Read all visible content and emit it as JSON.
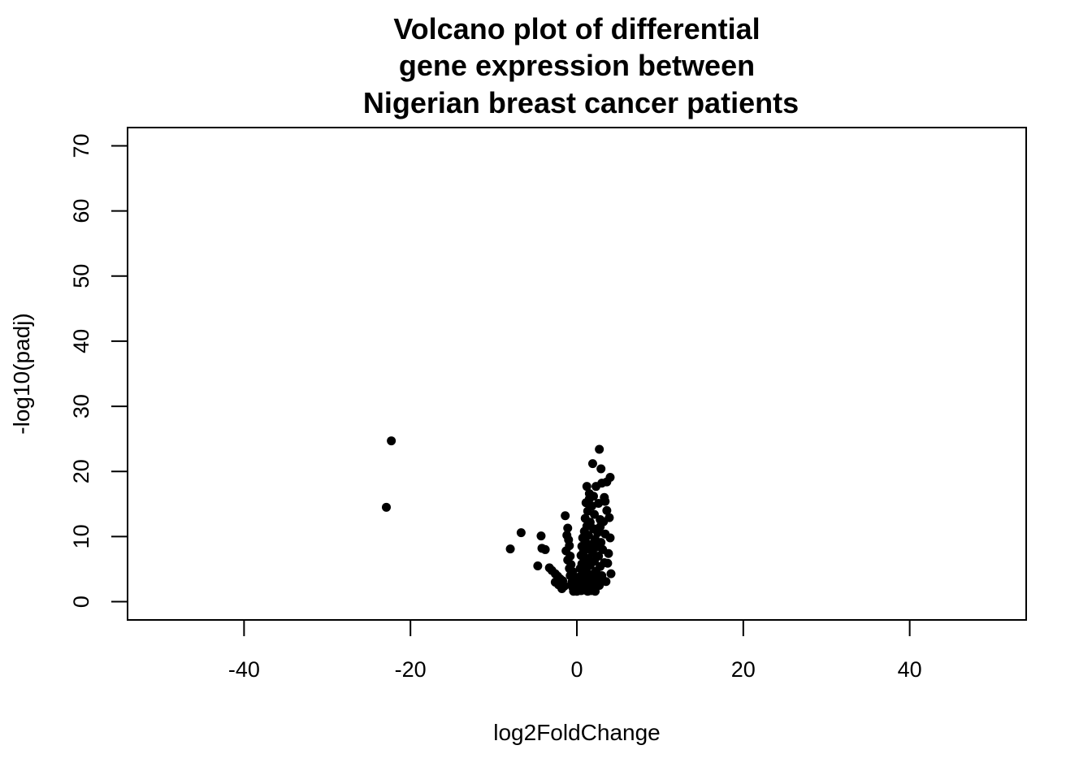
{
  "chart_data": {
    "type": "scatter",
    "title_lines": [
      "Volcano plot of differential",
      "gene expression between",
      "Nigerian breast cancer patients"
    ],
    "xlabel": "log2FoldChange",
    "ylabel": "-log10(padj)",
    "xlim": [
      -54,
      54
    ],
    "ylim": [
      -2.8,
      72.8
    ],
    "x_ticks": [
      -40,
      -20,
      0,
      20,
      40
    ],
    "y_ticks": [
      0,
      10,
      20,
      30,
      40,
      50,
      60,
      70
    ],
    "x_tick_labels": [
      "-40",
      "-20",
      "0",
      "20",
      "40"
    ],
    "y_tick_labels": [
      "0",
      "10",
      "20",
      "30",
      "40",
      "50",
      "60",
      "70"
    ],
    "grid": false,
    "legend": "none",
    "point_color": "#000000",
    "points": [
      [
        -22.3,
        24.7
      ],
      [
        -22.9,
        14.5
      ],
      [
        -8.0,
        8.1
      ],
      [
        -6.7,
        10.6
      ],
      [
        -4.3,
        10.1
      ],
      [
        -4.2,
        8.2
      ],
      [
        -3.8,
        8.0
      ],
      [
        -4.7,
        5.5
      ],
      [
        -3.3,
        5.2
      ],
      [
        -3.0,
        4.8
      ],
      [
        -2.6,
        4.3
      ],
      [
        -2.3,
        3.9
      ],
      [
        -2.0,
        3.5
      ],
      [
        -1.7,
        3.2
      ],
      [
        -1.4,
        13.2
      ],
      [
        -1.1,
        11.3
      ],
      [
        -1.2,
        10.2
      ],
      [
        -1.0,
        9.5
      ],
      [
        -0.9,
        8.6
      ],
      [
        -1.3,
        7.8
      ],
      [
        -0.8,
        7.0
      ],
      [
        -1.1,
        6.4
      ],
      [
        -0.7,
        5.7
      ],
      [
        -0.9,
        5.1
      ],
      [
        -0.5,
        4.6
      ],
      [
        -0.8,
        4.0
      ],
      [
        -0.4,
        3.5
      ],
      [
        -0.6,
        3.0
      ],
      [
        -0.3,
        2.6
      ],
      [
        -0.5,
        2.2
      ],
      [
        -0.2,
        1.9
      ],
      [
        -0.4,
        1.6
      ],
      [
        -1.5,
        2.4
      ],
      [
        -1.8,
        2.0
      ],
      [
        -2.2,
        2.6
      ],
      [
        -2.6,
        3.0
      ],
      [
        2.7,
        23.4
      ],
      [
        1.9,
        21.2
      ],
      [
        2.9,
        20.4
      ],
      [
        4.0,
        19.1
      ],
      [
        3.6,
        18.4
      ],
      [
        3.0,
        18.2
      ],
      [
        2.3,
        17.7
      ],
      [
        1.2,
        17.7
      ],
      [
        1.5,
        16.6
      ],
      [
        3.3,
        16.0
      ],
      [
        1.1,
        15.2
      ],
      [
        2.6,
        15.1
      ],
      [
        1.8,
        14.7
      ],
      [
        3.6,
        14.0
      ],
      [
        1.3,
        13.9
      ],
      [
        2.1,
        13.4
      ],
      [
        1.0,
        12.8
      ],
      [
        2.8,
        12.6
      ],
      [
        1.6,
        12.2
      ],
      [
        3.2,
        12.3
      ],
      [
        1.2,
        11.6
      ],
      [
        2.0,
        11.2
      ],
      [
        0.9,
        10.8
      ],
      [
        2.5,
        10.6
      ],
      [
        3.4,
        10.4
      ],
      [
        1.4,
        10.2
      ],
      [
        0.7,
        9.8
      ],
      [
        2.2,
        9.6
      ],
      [
        1.0,
        9.3
      ],
      [
        2.9,
        9.1
      ],
      [
        1.7,
        8.8
      ],
      [
        0.6,
        8.5
      ],
      [
        2.4,
        8.4
      ],
      [
        1.2,
        8.1
      ],
      [
        3.1,
        8.0
      ],
      [
        0.8,
        7.7
      ],
      [
        1.9,
        7.5
      ],
      [
        3.8,
        7.4
      ],
      [
        0.5,
        7.1
      ],
      [
        2.6,
        7.0
      ],
      [
        1.4,
        6.7
      ],
      [
        0.9,
        6.4
      ],
      [
        2.1,
        6.2
      ],
      [
        3.3,
        6.0
      ],
      [
        0.6,
        5.8
      ],
      [
        1.6,
        5.6
      ],
      [
        2.8,
        5.4
      ],
      [
        0.4,
        5.1
      ],
      [
        1.1,
        4.9
      ],
      [
        2.3,
        4.7
      ],
      [
        4.1,
        4.3
      ],
      [
        0.7,
        4.4
      ],
      [
        1.8,
        4.2
      ],
      [
        3.0,
        4.0
      ],
      [
        0.3,
        3.8
      ],
      [
        1.3,
        3.6
      ],
      [
        2.5,
        3.4
      ],
      [
        0.8,
        3.2
      ],
      [
        1.9,
        3.0
      ],
      [
        0.4,
        2.8
      ],
      [
        1.5,
        2.6
      ],
      [
        2.7,
        2.5
      ],
      [
        0.6,
        2.3
      ],
      [
        1.1,
        2.1
      ],
      [
        2.0,
        2.0
      ],
      [
        0.2,
        1.9
      ],
      [
        0.9,
        1.8
      ],
      [
        1.7,
        1.7
      ],
      [
        0.5,
        1.7
      ],
      [
        1.3,
        1.6
      ],
      [
        2.2,
        1.6
      ],
      [
        0.0,
        1.6
      ],
      [
        3.5,
        3.1
      ],
      [
        3.7,
        5.9
      ],
      [
        4.0,
        9.8
      ],
      [
        3.9,
        12.9
      ],
      [
        3.4,
        15.4
      ],
      [
        2.0,
        16.2
      ],
      [
        1.5,
        15.8
      ],
      [
        2.8,
        11.5
      ]
    ]
  }
}
